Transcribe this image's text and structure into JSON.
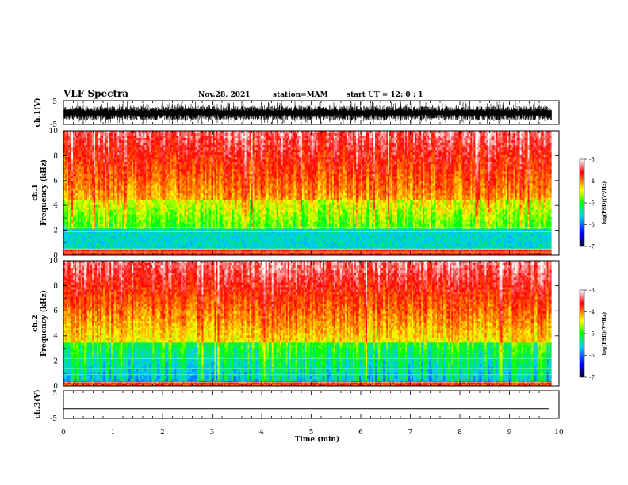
{
  "header": {
    "title": "VLF Spectra",
    "date": "Nov.28, 2021",
    "station": "station=MAM",
    "start": "start UT =  12: 0  : 1"
  },
  "chart_data": [
    {
      "type": "line",
      "panel": "channel-1-waveform",
      "ylabel": "ch.1(V)",
      "ylim": [
        -5,
        5
      ],
      "yticks": [
        "5",
        "-5"
      ],
      "xlim": [
        0,
        10
      ],
      "description_trace": "dense black waveform clipping near the limits"
    },
    {
      "type": "heatmap",
      "panel": "channel-1-spectrogram",
      "ylabel": "ch.1\nFrequency (kHz)",
      "ylabel_lines": [
        "ch.1",
        "Frequency (kHz)"
      ],
      "xlim": [
        0,
        10
      ],
      "ylim": [
        0,
        10
      ],
      "yticks": [
        "0",
        "2",
        "4",
        "6",
        "8",
        "10"
      ],
      "colorbar": {
        "label": "log(PSD)(V²/Hz)",
        "range": [
          -7,
          -3
        ],
        "ticks": [
          "-3",
          "-4",
          "-5",
          "-6",
          "-7"
        ],
        "colors": [
          "#000033",
          "#0000ff",
          "#00ccff",
          "#00ff00",
          "#ffff00",
          "#ff0000",
          "#ffffff"
        ]
      }
    },
    {
      "type": "heatmap",
      "panel": "channel-2-spectrogram",
      "ylabel": "ch.2\nFrequency (kHz)",
      "ylabel_lines": [
        "ch.2",
        "Frequency (kHz)"
      ],
      "xlim": [
        0,
        10
      ],
      "ylim": [
        0,
        10
      ],
      "yticks": [
        "0",
        "2",
        "4",
        "6",
        "8",
        "10"
      ],
      "colorbar": {
        "label": "log(PSD)(V²/Hz)",
        "range": [
          -7,
          -3
        ],
        "ticks": [
          "-3",
          "-4",
          "-5",
          "-6",
          "-7"
        ],
        "colors": [
          "#000033",
          "#0000ff",
          "#00ccff",
          "#00ff00",
          "#ffff00",
          "#ff0000",
          "#ffffff"
        ]
      }
    },
    {
      "type": "line",
      "panel": "channel-3-waveform",
      "ylabel": "ch.3(V)",
      "ylim": [
        -5,
        5
      ],
      "yticks": [
        "5",
        "0",
        "-5"
      ],
      "xlim": [
        0,
        10
      ],
      "x": [
        0,
        9.8
      ],
      "y": [
        -1.5,
        -1.5
      ]
    }
  ],
  "xaxis": {
    "label": "Time (min)",
    "ticks": [
      "0",
      "1",
      "2",
      "3",
      "4",
      "5",
      "6",
      "7",
      "8",
      "9",
      "10"
    ]
  }
}
